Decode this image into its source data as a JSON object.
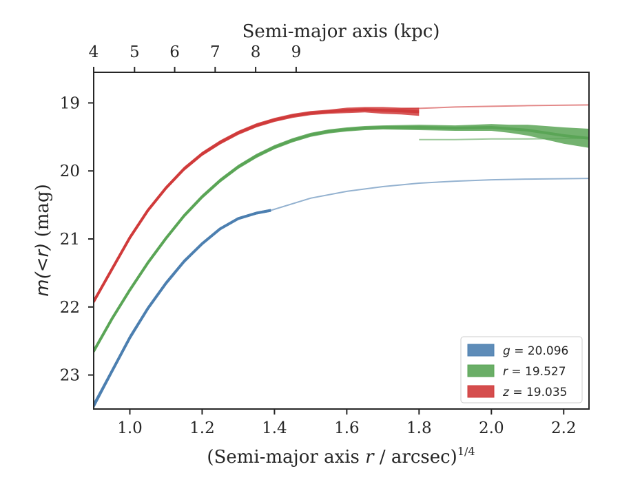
{
  "chart_data": {
    "type": "line",
    "xlabel": "(Semi-major axis r / arcsec)",
    "xlabel_var": "r",
    "xlabel_pre": "(Semi-major axis ",
    "xlabel_post": " / arcsec)",
    "xlabel_sup": "1/4",
    "ylabel": "m(<r) (mag)",
    "ylabel_math": "m(<r)",
    "ylabel_unit": " (mag)",
    "top_xlabel": "Semi-major axis (kpc)",
    "xlim": [
      0.9,
      2.27
    ],
    "ylim": [
      23.5,
      18.55
    ],
    "y_inverted": true,
    "x_ticks": [
      1.0,
      1.2,
      1.4,
      1.6,
      1.8,
      2.0,
      2.2
    ],
    "x_tick_labels": [
      "1.0",
      "1.2",
      "1.4",
      "1.6",
      "1.8",
      "2.0",
      "2.2"
    ],
    "y_ticks": [
      19,
      20,
      21,
      22,
      23
    ],
    "y_tick_labels": [
      "19",
      "20",
      "21",
      "22",
      "23"
    ],
    "top_ticks": [
      4,
      5,
      6,
      7,
      8,
      9
    ],
    "top_tick_labels": [
      "4",
      "5",
      "6",
      "7",
      "8",
      "9"
    ],
    "top_tick_positions": [
      0.9,
      1.013,
      1.124,
      1.236,
      1.348,
      1.46
    ],
    "grid": false,
    "legend_position": "lower-right",
    "series": [
      {
        "name": "g = 20.096",
        "legend_var": "g",
        "legend_value": " = 20.096",
        "color": "#4c7fb0",
        "x": [
          0.9,
          0.95,
          1.0,
          1.05,
          1.1,
          1.15,
          1.2,
          1.25,
          1.3,
          1.35,
          1.39
        ],
        "y": [
          23.45,
          22.95,
          22.45,
          22.02,
          21.65,
          21.33,
          21.07,
          20.85,
          20.7,
          20.62,
          20.58
        ],
        "band": [
          0.05,
          0.04,
          0.04,
          0.03,
          0.03,
          0.03,
          0.02,
          0.02,
          0.02,
          0.02,
          0.02
        ],
        "model_x": [
          1.39,
          1.5,
          1.6,
          1.7,
          1.8,
          1.9,
          2.0,
          2.1,
          2.27
        ],
        "model_y": [
          20.58,
          20.4,
          20.3,
          20.23,
          20.18,
          20.15,
          20.13,
          20.12,
          20.11
        ]
      },
      {
        "name": "r = 19.527",
        "legend_var": "r",
        "legend_value": " = 19.527",
        "color": "#5aa556",
        "x": [
          0.9,
          0.95,
          1.0,
          1.05,
          1.1,
          1.15,
          1.2,
          1.25,
          1.3,
          1.35,
          1.4,
          1.45,
          1.5,
          1.55,
          1.6,
          1.65,
          1.7,
          1.8,
          1.9,
          2.0,
          2.05,
          2.1,
          2.15,
          2.2,
          2.27
        ],
        "y": [
          22.65,
          22.18,
          21.75,
          21.35,
          20.99,
          20.66,
          20.38,
          20.14,
          19.94,
          19.78,
          19.65,
          19.55,
          19.47,
          19.42,
          19.39,
          19.37,
          19.36,
          19.36,
          19.37,
          19.36,
          19.38,
          19.4,
          19.44,
          19.48,
          19.52
        ],
        "band": [
          0.04,
          0.03,
          0.03,
          0.03,
          0.03,
          0.03,
          0.03,
          0.03,
          0.03,
          0.03,
          0.03,
          0.03,
          0.03,
          0.03,
          0.03,
          0.03,
          0.03,
          0.04,
          0.04,
          0.05,
          0.06,
          0.08,
          0.1,
          0.12,
          0.14
        ],
        "model_x": [
          1.8,
          1.9,
          2.0,
          2.1,
          2.27
        ],
        "model_y": [
          19.54,
          19.54,
          19.53,
          19.53,
          19.52
        ]
      },
      {
        "name": "z = 19.035",
        "legend_var": "z",
        "legend_value": " = 19.035",
        "color": "#d03a3a",
        "x": [
          0.9,
          0.95,
          1.0,
          1.05,
          1.1,
          1.15,
          1.2,
          1.25,
          1.3,
          1.35,
          1.4,
          1.45,
          1.5,
          1.55,
          1.6,
          1.65,
          1.7,
          1.75,
          1.8
        ],
        "y": [
          21.92,
          21.45,
          20.98,
          20.58,
          20.25,
          19.97,
          19.75,
          19.58,
          19.44,
          19.33,
          19.25,
          19.19,
          19.15,
          19.13,
          19.11,
          19.1,
          19.11,
          19.12,
          19.13
        ],
        "band": [
          0.04,
          0.03,
          0.03,
          0.03,
          0.03,
          0.03,
          0.03,
          0.03,
          0.03,
          0.03,
          0.03,
          0.03,
          0.03,
          0.03,
          0.04,
          0.04,
          0.05,
          0.05,
          0.06
        ],
        "model_x": [
          1.7,
          1.8,
          1.9,
          2.0,
          2.1,
          2.27
        ],
        "model_y": [
          19.1,
          19.08,
          19.06,
          19.05,
          19.04,
          19.03
        ]
      }
    ]
  }
}
